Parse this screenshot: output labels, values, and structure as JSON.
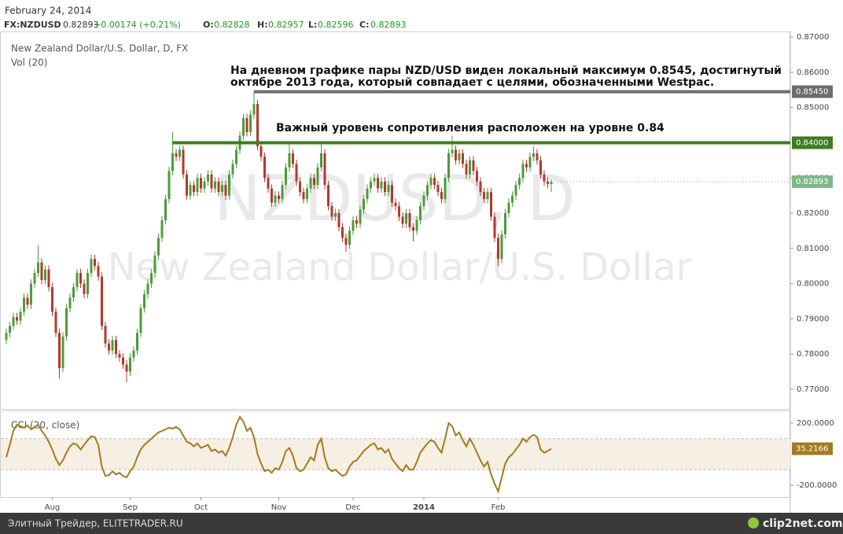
{
  "header": {
    "date": "February 24, 2014",
    "symbol": "FX:NZDUSD",
    "change": "+0.00174 (+0.21%)",
    "o": "O:",
    "h": "H:",
    "l": "L:",
    "c": "C:"
  },
  "footer": {
    "source": "Элитный Трейдер, ELITETRADER.RU",
    "logo": "clip2net.com"
  },
  "chart_data": [
    {
      "type": "candlestick",
      "title": "New Zealand Dollar/U.S. Dollar, D, FX",
      "subtitle": "Vol (20)",
      "watermark": "NZDUSD, D",
      "watermark_name": "New Zealand Dollar/U.S. Dollar",
      "annotations": [
        "На дневном графике пары NZD/USD виден локальный максимум 0.8545, достигнутый",
        "октябре 2013 года, который совпадает с целями, обозначенными Westpac.",
        "Важный уровень сопротивления расположен на уровне 0.84"
      ],
      "up_color": "#4e9a3a",
      "down_color": "#b03a2e",
      "last_color": "#7fb88a",
      "ylim": [
        0.7644,
        0.8716
      ],
      "yticks": [
        {
          "value": 0.87,
          "label": "0.87000"
        },
        {
          "value": 0.86,
          "label": "0.86000"
        },
        {
          "value": 0.85,
          "label": "0.85000"
        },
        {
          "value": 0.83,
          "label": "0.83000"
        },
        {
          "value": 0.82,
          "label": "0.82000"
        },
        {
          "value": 0.81,
          "label": "0.81000"
        },
        {
          "value": 0.8,
          "label": "0.80000"
        },
        {
          "value": 0.79,
          "label": "0.79000"
        },
        {
          "value": 0.78,
          "label": "0.78000"
        },
        {
          "value": 0.77,
          "label": "0.77000"
        }
      ],
      "levels": [
        {
          "value": 0.8545,
          "label": "0.85450",
          "color": "#6d6d6d"
        },
        {
          "value": 0.84,
          "label": "0.84000",
          "color": "#3e7d1f"
        }
      ],
      "categories": [
        null,
        null,
        null,
        null,
        null,
        null,
        null,
        null,
        null,
        null,
        null,
        null,
        null,
        "Aug",
        null,
        null,
        null,
        null,
        null,
        null,
        null,
        null,
        null,
        null,
        null,
        null,
        null,
        null,
        null,
        null,
        null,
        null,
        null,
        null,
        null,
        "Sep",
        null,
        null,
        null,
        null,
        null,
        null,
        null,
        null,
        null,
        null,
        null,
        null,
        null,
        null,
        null,
        null,
        null,
        null,
        null,
        "Oct",
        null,
        null,
        null,
        null,
        null,
        null,
        null,
        null,
        null,
        null,
        null,
        null,
        null,
        null,
        null,
        null,
        null,
        null,
        null,
        null,
        null,
        "Nov",
        null,
        null,
        null,
        null,
        null,
        null,
        null,
        null,
        null,
        null,
        null,
        null,
        null,
        null,
        null,
        null,
        null,
        null,
        null,
        null,
        "Dec",
        null,
        null,
        null,
        null,
        null,
        null,
        null,
        null,
        null,
        null,
        null,
        null,
        null,
        null,
        null,
        null,
        null,
        null,
        null,
        "2014",
        null,
        null,
        null,
        null,
        null,
        null,
        null,
        null,
        null,
        null,
        null,
        null,
        null,
        null,
        null,
        null,
        null,
        null,
        null,
        null,
        "Feb",
        null,
        null,
        null,
        null,
        null,
        null,
        null,
        null,
        null,
        null,
        null,
        null,
        null,
        null,
        null
      ],
      "open": [
        0.784,
        0.786,
        0.788,
        0.7905,
        0.7895,
        0.792,
        0.796,
        0.794,
        0.8,
        0.803,
        0.806,
        0.801,
        0.804,
        0.799,
        0.792,
        0.786,
        0.776,
        0.785,
        0.793,
        0.796,
        0.799,
        0.803,
        0.8,
        0.797,
        0.803,
        0.807,
        0.805,
        0.802,
        0.788,
        0.783,
        0.781,
        0.784,
        0.78,
        0.779,
        0.777,
        0.775,
        0.779,
        0.781,
        0.786,
        0.793,
        0.797,
        0.8,
        0.803,
        0.808,
        0.813,
        0.818,
        0.824,
        0.832,
        0.837,
        0.836,
        0.838,
        0.831,
        0.825,
        0.828,
        0.826,
        0.83,
        0.827,
        0.829,
        0.831,
        0.827,
        0.829,
        0.826,
        0.828,
        0.825,
        0.831,
        0.834,
        0.838,
        0.842,
        0.847,
        0.843,
        0.848,
        0.851,
        0.839,
        0.836,
        0.83,
        0.827,
        0.823,
        0.825,
        0.824,
        0.828,
        0.833,
        0.837,
        0.834,
        0.829,
        0.826,
        0.824,
        0.827,
        0.83,
        0.828,
        0.833,
        0.837,
        0.828,
        0.822,
        0.819,
        0.82,
        0.816,
        0.813,
        0.811,
        0.815,
        0.818,
        0.817,
        0.821,
        0.824,
        0.827,
        0.829,
        0.83,
        0.827,
        0.829,
        0.826,
        0.828,
        0.823,
        0.822,
        0.819,
        0.817,
        0.82,
        0.816,
        0.815,
        0.818,
        0.822,
        0.825,
        0.828,
        0.83,
        0.828,
        0.826,
        0.824,
        0.83,
        0.837,
        0.838,
        0.835,
        0.837,
        0.834,
        0.831,
        0.835,
        0.832,
        0.829,
        0.826,
        0.824,
        0.826,
        0.819,
        0.813,
        0.807,
        0.814,
        0.82,
        0.823,
        0.825,
        0.828,
        0.83,
        0.834,
        0.833,
        0.836,
        0.837,
        0.835,
        0.831,
        0.829,
        0.82828
      ],
      "high": [
        0.7872,
        0.7892,
        0.7917,
        0.7917,
        0.7932,
        0.7972,
        0.7972,
        0.8012,
        0.8042,
        0.811,
        0.8072,
        0.8052,
        0.8052,
        0.8002,
        0.7932,
        0.7872,
        0.7862,
        0.7942,
        0.7972,
        0.8002,
        0.8042,
        0.8042,
        0.8012,
        0.8042,
        0.8082,
        0.8082,
        0.8062,
        0.8032,
        0.7892,
        0.7842,
        0.7852,
        0.7852,
        0.7812,
        0.7802,
        0.7782,
        0.7802,
        0.7822,
        0.7872,
        0.7942,
        0.7982,
        0.8012,
        0.8042,
        0.8092,
        0.8142,
        0.8192,
        0.8252,
        0.8332,
        0.843,
        0.8382,
        0.8392,
        0.8392,
        0.8322,
        0.8292,
        0.8292,
        0.8312,
        0.8312,
        0.8302,
        0.8322,
        0.8322,
        0.8302,
        0.8302,
        0.8292,
        0.8292,
        0.8322,
        0.8352,
        0.8392,
        0.8432,
        0.8482,
        0.8482,
        0.8492,
        0.8545,
        0.8522,
        0.8402,
        0.8372,
        0.8312,
        0.8282,
        0.8262,
        0.8262,
        0.8292,
        0.8342,
        0.84,
        0.8382,
        0.8352,
        0.8302,
        0.8272,
        0.8282,
        0.8312,
        0.8312,
        0.8342,
        0.8395,
        0.8382,
        0.8292,
        0.8232,
        0.8212,
        0.8212,
        0.8172,
        0.8142,
        0.8162,
        0.8192,
        0.8192,
        0.8222,
        0.8252,
        0.8282,
        0.8302,
        0.8312,
        0.8312,
        0.8302,
        0.8302,
        0.8292,
        0.8292,
        0.8242,
        0.8232,
        0.8202,
        0.8212,
        0.8212,
        0.8172,
        0.8192,
        0.8232,
        0.8262,
        0.8292,
        0.8312,
        0.8312,
        0.8292,
        0.8272,
        0.8312,
        0.8382,
        0.842,
        0.8392,
        0.8382,
        0.8382,
        0.8352,
        0.8362,
        0.8362,
        0.8332,
        0.8302,
        0.8272,
        0.8272,
        0.8272,
        0.8202,
        0.8142,
        0.8152,
        0.8212,
        0.8242,
        0.8262,
        0.8292,
        0.8312,
        0.8352,
        0.8352,
        0.8372,
        0.839,
        0.8382,
        0.8362,
        0.8322,
        0.8302,
        0.82957
      ],
      "low": [
        0.7828,
        0.7848,
        0.7868,
        0.7883,
        0.7883,
        0.7908,
        0.7928,
        0.7928,
        0.7988,
        0.8018,
        0.7998,
        0.7998,
        0.7978,
        0.7908,
        0.7848,
        0.773,
        0.7748,
        0.7838,
        0.7918,
        0.7948,
        0.7978,
        0.7988,
        0.7958,
        0.7958,
        0.8018,
        0.8038,
        0.8008,
        0.7868,
        0.7818,
        0.7798,
        0.7798,
        0.7788,
        0.7778,
        0.7758,
        0.772,
        0.7738,
        0.7778,
        0.7798,
        0.7848,
        0.7918,
        0.7958,
        0.7988,
        0.8018,
        0.8068,
        0.8118,
        0.8168,
        0.8228,
        0.8308,
        0.8348,
        0.8348,
        0.8298,
        0.8238,
        0.8238,
        0.8248,
        0.8248,
        0.8258,
        0.8258,
        0.8278,
        0.8258,
        0.8258,
        0.8248,
        0.8248,
        0.8238,
        0.8238,
        0.8298,
        0.8328,
        0.8368,
        0.8408,
        0.8418,
        0.8418,
        0.8468,
        0.8378,
        0.8348,
        0.8288,
        0.8258,
        0.8218,
        0.8218,
        0.8228,
        0.8228,
        0.8268,
        0.8318,
        0.8328,
        0.8278,
        0.8248,
        0.8228,
        0.8228,
        0.8258,
        0.8268,
        0.8268,
        0.8318,
        0.8268,
        0.8208,
        0.8178,
        0.8178,
        0.8148,
        0.8118,
        0.809,
        0.8098,
        0.8138,
        0.8158,
        0.8158,
        0.8198,
        0.8228,
        0.8258,
        0.8278,
        0.8258,
        0.8258,
        0.8248,
        0.8248,
        0.8218,
        0.8208,
        0.8178,
        0.8158,
        0.8158,
        0.8148,
        0.812,
        0.8138,
        0.8168,
        0.8208,
        0.8238,
        0.8268,
        0.8268,
        0.8248,
        0.8228,
        0.8228,
        0.8288,
        0.8358,
        0.8338,
        0.8338,
        0.8328,
        0.8298,
        0.8298,
        0.8308,
        0.8278,
        0.8248,
        0.8228,
        0.8228,
        0.8178,
        0.8118,
        0.805,
        0.8058,
        0.8128,
        0.8188,
        0.8218,
        0.8238,
        0.8268,
        0.8288,
        0.8318,
        0.8318,
        0.8348,
        0.8338,
        0.8298,
        0.8278,
        0.8271,
        0.82596
      ],
      "close": [
        0.786,
        0.788,
        0.7905,
        0.7895,
        0.792,
        0.796,
        0.794,
        0.8,
        0.803,
        0.806,
        0.801,
        0.804,
        0.799,
        0.792,
        0.786,
        0.776,
        0.785,
        0.793,
        0.796,
        0.799,
        0.803,
        0.8,
        0.797,
        0.803,
        0.807,
        0.805,
        0.802,
        0.788,
        0.783,
        0.781,
        0.784,
        0.78,
        0.779,
        0.777,
        0.775,
        0.779,
        0.781,
        0.786,
        0.793,
        0.797,
        0.8,
        0.803,
        0.808,
        0.813,
        0.818,
        0.824,
        0.832,
        0.837,
        0.836,
        0.838,
        0.831,
        0.825,
        0.828,
        0.826,
        0.83,
        0.827,
        0.829,
        0.831,
        0.827,
        0.829,
        0.826,
        0.828,
        0.825,
        0.831,
        0.834,
        0.838,
        0.842,
        0.847,
        0.843,
        0.848,
        0.851,
        0.839,
        0.836,
        0.83,
        0.827,
        0.823,
        0.825,
        0.824,
        0.828,
        0.833,
        0.837,
        0.834,
        0.829,
        0.826,
        0.824,
        0.827,
        0.83,
        0.828,
        0.833,
        0.837,
        0.828,
        0.822,
        0.819,
        0.82,
        0.816,
        0.813,
        0.811,
        0.815,
        0.818,
        0.817,
        0.821,
        0.824,
        0.827,
        0.829,
        0.83,
        0.827,
        0.829,
        0.826,
        0.828,
        0.823,
        0.822,
        0.819,
        0.817,
        0.82,
        0.816,
        0.815,
        0.818,
        0.822,
        0.825,
        0.828,
        0.83,
        0.828,
        0.826,
        0.824,
        0.83,
        0.837,
        0.838,
        0.835,
        0.837,
        0.834,
        0.831,
        0.835,
        0.832,
        0.829,
        0.826,
        0.824,
        0.826,
        0.819,
        0.813,
        0.807,
        0.814,
        0.82,
        0.823,
        0.825,
        0.828,
        0.83,
        0.834,
        0.833,
        0.836,
        0.837,
        0.835,
        0.831,
        0.829,
        0.8283,
        0.82893
      ]
    },
    {
      "type": "line",
      "title": "CCI (20, close)",
      "color": "#a57a1e",
      "band": [
        -100,
        100
      ],
      "band_color": "#f6efe3",
      "ylim": [
        -276,
        281
      ],
      "yticks": [
        {
          "value": 200,
          "label": "200.0000"
        },
        {
          "value": -200,
          "label": "-200.0000"
        }
      ],
      "values": [
        -20,
        60,
        150,
        190,
        180,
        170,
        185,
        160,
        175,
        190,
        150,
        120,
        80,
        30,
        -30,
        -70,
        -40,
        10,
        50,
        70,
        60,
        30,
        60,
        90,
        115,
        110,
        60,
        -80,
        -140,
        -135,
        -110,
        -130,
        -120,
        -140,
        -150,
        -110,
        -80,
        -20,
        30,
        60,
        80,
        100,
        120,
        140,
        150,
        160,
        170,
        165,
        175,
        160,
        120,
        80,
        70,
        50,
        70,
        40,
        50,
        60,
        20,
        30,
        10,
        20,
        -10,
        40,
        110,
        190,
        240,
        210,
        150,
        170,
        110,
        0,
        -60,
        -110,
        -100,
        -120,
        -90,
        -100,
        -50,
        20,
        40,
        -10,
        -90,
        -110,
        -100,
        -60,
        -20,
        -40,
        60,
        100,
        -20,
        -90,
        -110,
        -100,
        -120,
        -140,
        -130,
        -80,
        -50,
        -40,
        -10,
        20,
        40,
        60,
        70,
        30,
        40,
        10,
        30,
        -30,
        -60,
        -90,
        -110,
        -70,
        -100,
        -100,
        -50,
        10,
        40,
        70,
        90,
        80,
        40,
        10,
        100,
        200,
        180,
        120,
        140,
        90,
        50,
        100,
        60,
        10,
        -40,
        -80,
        -50,
        -130,
        -190,
        -240,
        -150,
        -60,
        -20,
        0,
        30,
        60,
        100,
        80,
        110,
        125,
        110,
        30,
        10,
        20,
        35.2166
      ]
    }
  ]
}
